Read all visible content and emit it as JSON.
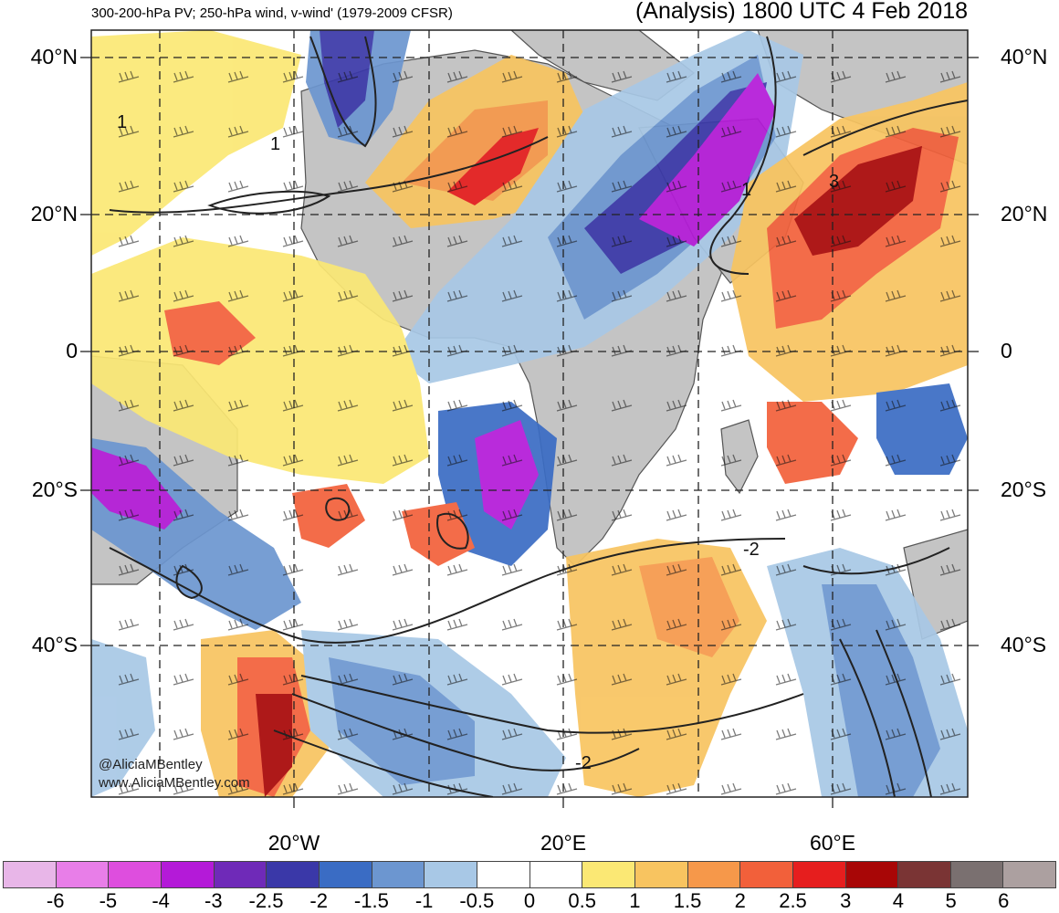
{
  "header": {
    "product": "300-200-hPa PV; 250-hPa wind, v-wind' (1979-2009 CFSR)",
    "valid": "(Analysis) 1800 UTC 4 Feb 2018"
  },
  "map": {
    "lat_labels": [
      "40°N",
      "20°N",
      "0",
      "20°S",
      "40°S"
    ],
    "lon_labels": [
      "20°W",
      "20°E",
      "60°E"
    ],
    "contour_labels": [
      "1",
      "1",
      "1",
      "3",
      "-2",
      "-2"
    ],
    "land_color": "#c4c4c4",
    "coast_color": "#555555"
  },
  "credit": {
    "twitter": "@AliciaMBentley",
    "site": "www.AliciaMBentley.com"
  },
  "colorbar": {
    "colors": [
      "#e8b6e8",
      "#e87ee8",
      "#de4ede",
      "#b41ad8",
      "#6f2ab8",
      "#3a38a8",
      "#3a6cc4",
      "#6c96d0",
      "#a8c8e6",
      "#ffffff",
      "#ffffff",
      "#fbe874",
      "#f8c460",
      "#f6984a",
      "#f2603a",
      "#e61e1e",
      "#a80606",
      "#7a3434",
      "#7a7070",
      "#aca0a0"
    ],
    "labels": [
      "-6",
      "-5",
      "-4",
      "-3",
      "-2.5",
      "-2",
      "-1.5",
      "-1",
      "-0.5",
      "0",
      "0.5",
      "1",
      "1.5",
      "2",
      "2.5",
      "3",
      "4",
      "5",
      "6"
    ]
  }
}
